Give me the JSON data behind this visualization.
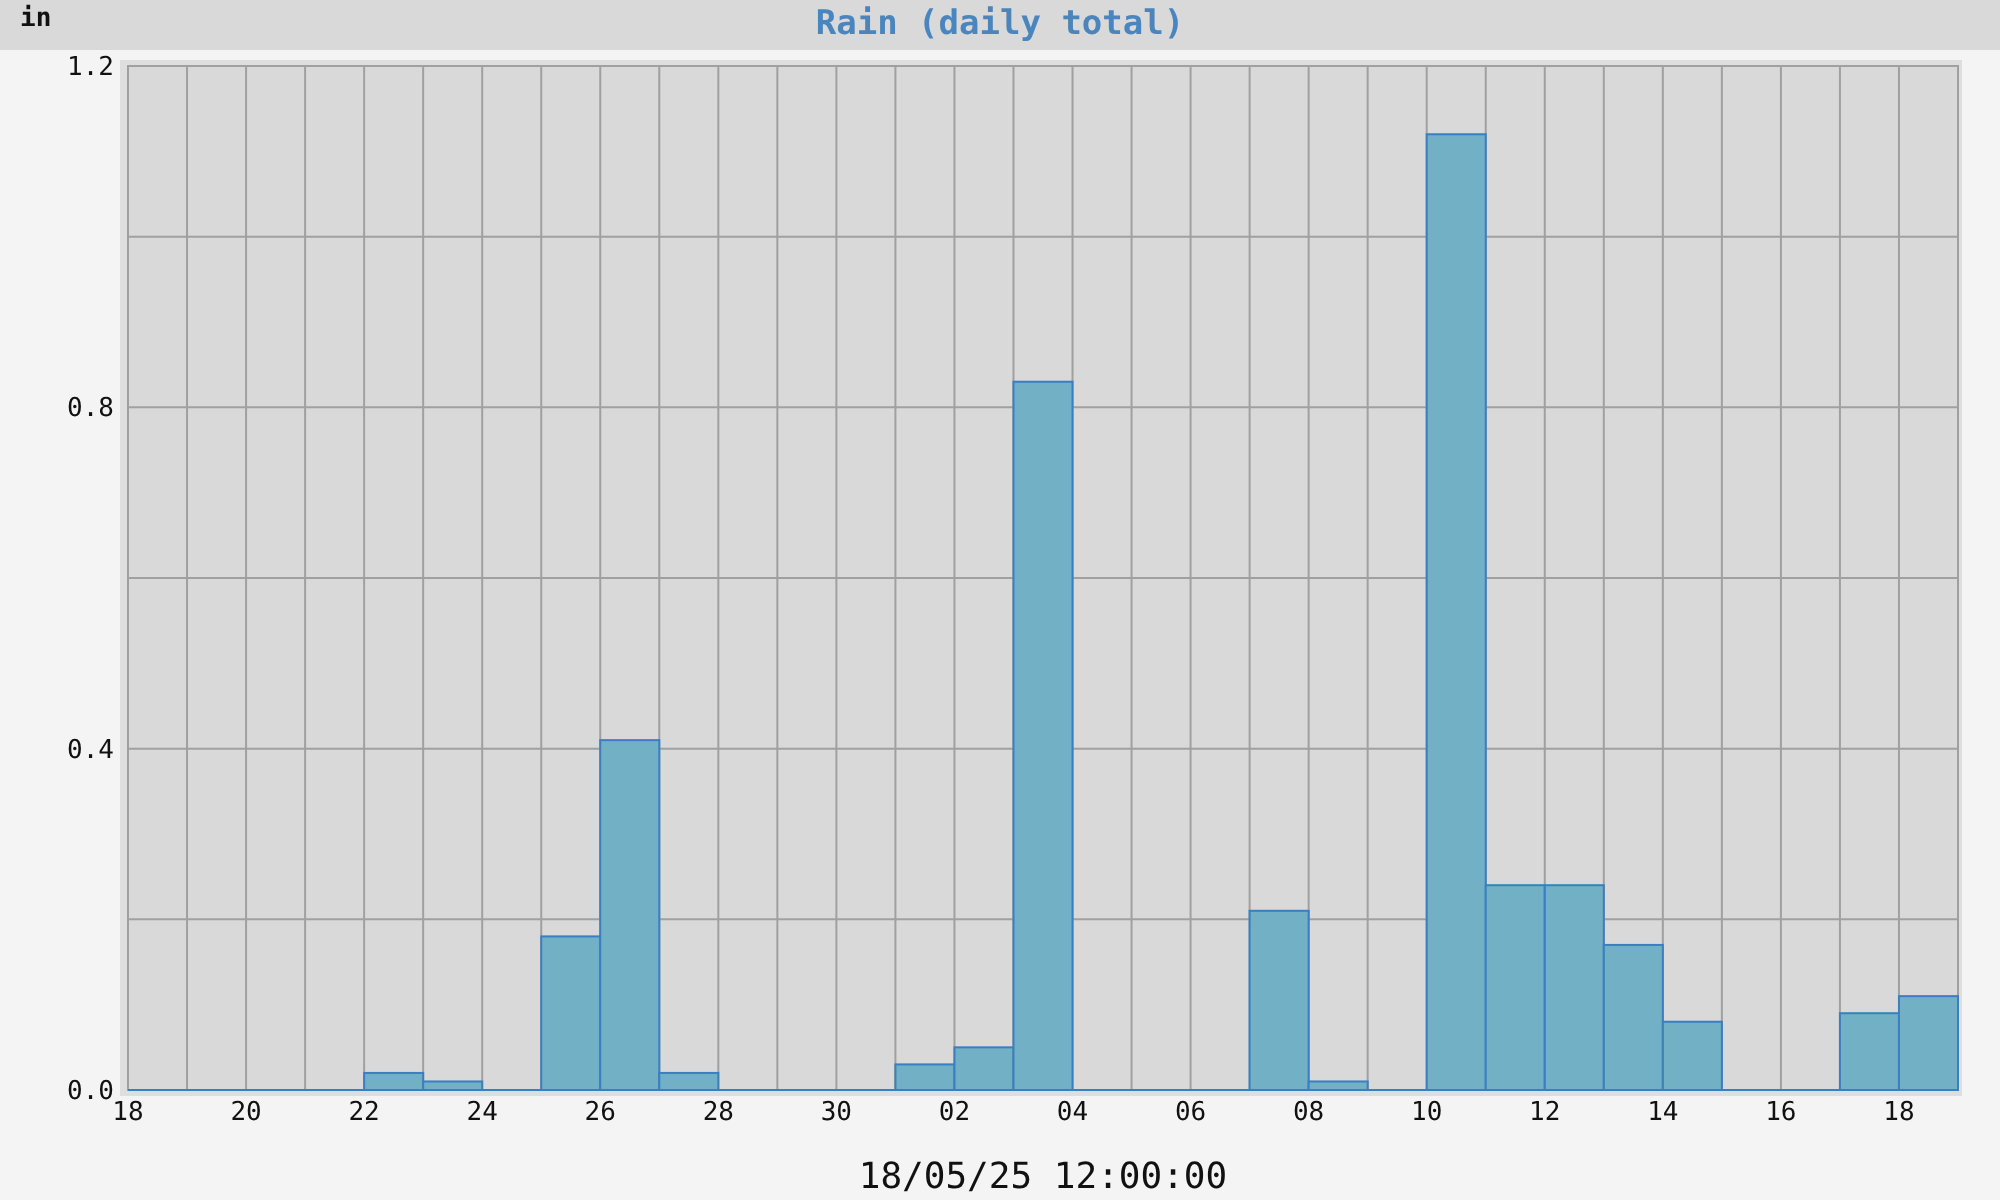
{
  "chart_data": {
    "type": "bar",
    "title": "Rain (daily total)",
    "ylabel": "in",
    "xlabel": "18/05/25 12:00:00",
    "x": [
      "--04-18T12:00",
      "--04-19T12:00",
      "--04-20T12:00",
      "--04-21T12:00",
      "--04-22T12:00",
      "--04-23T12:00",
      "--04-24T12:00",
      "--04-25T12:00",
      "--04-26T12:00",
      "--04-27T12:00",
      "--04-28T12:00",
      "--04-29T12:00",
      "--04-30T12:00",
      "--05-01T12:00",
      "--05-02T12:00",
      "--05-03T12:00",
      "--05-04T12:00",
      "--05-05T12:00",
      "--05-06T12:00",
      "--05-07T12:00",
      "--05-08T12:00",
      "--05-09T12:00",
      "--05-10T12:00",
      "--05-11T12:00",
      "--05-12T12:00",
      "--05-13T12:00",
      "--05-14T12:00",
      "--05-15T12:00",
      "--05-16T12:00",
      "--05-17T12:00",
      "--05-18T12:00"
    ],
    "values": [
      0,
      0,
      0,
      0,
      0.02,
      0.01,
      0,
      0.18,
      0.41,
      0.02,
      0,
      0,
      0,
      0.03,
      0.05,
      0.83,
      0,
      0,
      0,
      0.21,
      0.01,
      0,
      1.12,
      0.24,
      0.24,
      0.17,
      0.08,
      0,
      0,
      0.09,
      0.11
    ],
    "color": "#72b0c5",
    "xlim": [
      "--04-18",
      "--05-19"
    ],
    "xticks": [
      {
        "value": "--04-18",
        "label": "18"
      },
      {
        "value": "--04-19",
        "label": null
      },
      {
        "value": "--04-20",
        "label": "20"
      },
      {
        "value": "--04-21",
        "label": null
      },
      {
        "value": "--04-22",
        "label": "22"
      },
      {
        "value": "--04-23",
        "label": null
      },
      {
        "value": "--04-24",
        "label": "24"
      },
      {
        "value": "--04-25",
        "label": null
      },
      {
        "value": "--04-26",
        "label": "26"
      },
      {
        "value": "--04-27",
        "label": null
      },
      {
        "value": "--04-28",
        "label": "28"
      },
      {
        "value": "--04-29",
        "label": null
      },
      {
        "value": "--04-30",
        "label": "30"
      },
      {
        "value": "--05-01",
        "label": null
      },
      {
        "value": "--05-02",
        "label": "02"
      },
      {
        "value": "--05-03",
        "label": null
      },
      {
        "value": "--05-04",
        "label": "04"
      },
      {
        "value": "--05-05",
        "label": null
      },
      {
        "value": "--05-06",
        "label": "06"
      },
      {
        "value": "--05-07",
        "label": null
      },
      {
        "value": "--05-08",
        "label": "08"
      },
      {
        "value": "--05-09",
        "label": null
      },
      {
        "value": "--05-10",
        "label": "10"
      },
      {
        "value": "--05-11",
        "label": null
      },
      {
        "value": "--05-12",
        "label": "12"
      },
      {
        "value": "--05-13",
        "label": null
      },
      {
        "value": "--05-14",
        "label": "14"
      },
      {
        "value": "--05-15",
        "label": null
      },
      {
        "value": "--05-16",
        "label": "16"
      },
      {
        "value": "--05-17",
        "label": null
      },
      {
        "value": "--05-18",
        "label": "18"
      }
    ],
    "ylim": [
      0,
      1.2
    ],
    "yticks": [
      {
        "value": 0,
        "label": "0.0"
      },
      {
        "value": 0.2,
        "label": null
      },
      {
        "value": 0.4,
        "label": "0.4"
      },
      {
        "value": 0.6,
        "label": null
      },
      {
        "value": 0.8,
        "label": "0.8"
      },
      {
        "value": 1.0,
        "label": null
      },
      {
        "value": 1.2,
        "label": "1.2"
      }
    ],
    "grid": true
  }
}
